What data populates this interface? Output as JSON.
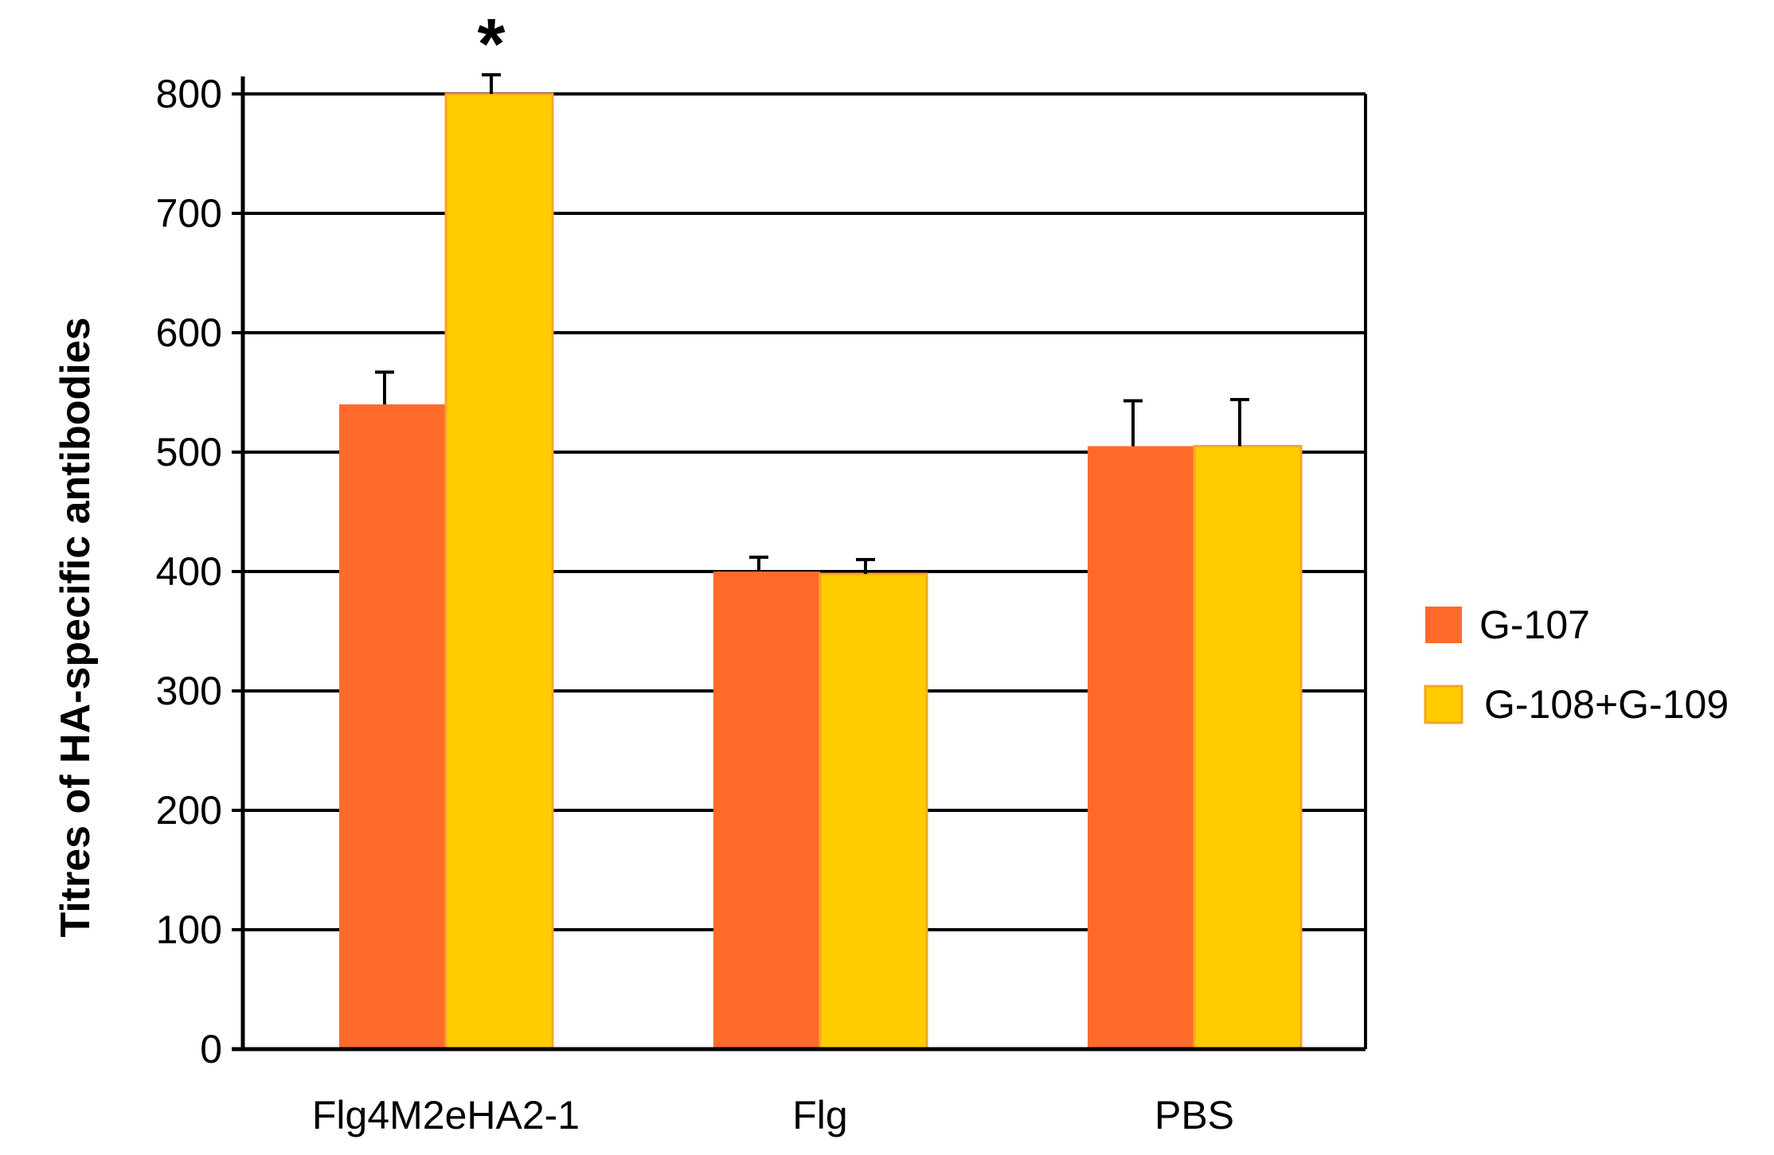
{
  "chart_data": {
    "type": "bar",
    "title": "",
    "xlabel": "",
    "ylabel": "Titres of HA-specific antibodies",
    "categories": [
      "Flg4M2eHA2-1",
      "Flg",
      "PBS"
    ],
    "series": [
      {
        "name": "G-107",
        "color": "#ff6a2b",
        "values": [
          540,
          400,
          505
        ],
        "errors": [
          27,
          12,
          38
        ]
      },
      {
        "name": "G-108+G-109",
        "color": "#ffcc00",
        "values": [
          800,
          398,
          505
        ],
        "errors": [
          16,
          12,
          39
        ]
      }
    ],
    "ylim": [
      0,
      800
    ],
    "yticks": [
      "0",
      "100",
      "200",
      "300",
      "400",
      "500",
      "600",
      "700",
      "800"
    ],
    "grid": true,
    "legend_position": "right",
    "annotations": [
      {
        "text": "*",
        "category_index": 0,
        "series_index": 1
      }
    ],
    "bar_stroke_color": "#f5a623",
    "axis_color": "#000000"
  }
}
